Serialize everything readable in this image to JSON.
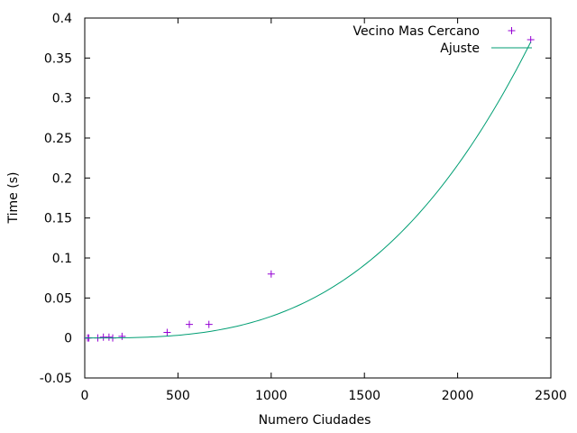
{
  "chart_data": {
    "type": "scatter",
    "xlabel": "Numero Ciudades",
    "ylabel": "Time (s)",
    "xlim": [
      0,
      2500
    ],
    "ylim": [
      -0.05,
      0.4
    ],
    "x_ticks": [
      0,
      500,
      1000,
      1500,
      2000,
      2500
    ],
    "y_ticks": [
      -0.05,
      0,
      0.05,
      0.1,
      0.15,
      0.2,
      0.25,
      0.3,
      0.35,
      0.4
    ],
    "x_tick_labels": [
      "0",
      "500",
      "1000",
      "1500",
      "2000",
      "2500"
    ],
    "y_tick_labels": [
      "-0.05",
      "0",
      "0.05",
      "0.1",
      "0.15",
      "0.2",
      "0.25",
      "0.3",
      "0.35",
      "0.4"
    ],
    "grid": false,
    "legend_position": "top-right",
    "series": [
      {
        "name": "Vecino Mas Cercano",
        "kind": "points",
        "marker": "plus",
        "color": "#9400d3",
        "points": [
          [
            15,
            0.0
          ],
          [
            22,
            0.0
          ],
          [
            70,
            0.0
          ],
          [
            100,
            0.001
          ],
          [
            130,
            0.001
          ],
          [
            150,
            0.0
          ],
          [
            200,
            0.002
          ],
          [
            442,
            0.007
          ],
          [
            561,
            0.017
          ],
          [
            666,
            0.017
          ],
          [
            1000,
            0.08
          ],
          [
            2392,
            0.373
          ]
        ]
      },
      {
        "name": "Ajuste",
        "kind": "line",
        "color": "#009e73",
        "curve": "cubic",
        "x_range": [
          0,
          2392
        ],
        "y_at_xmax": 0.37
      }
    ]
  }
}
